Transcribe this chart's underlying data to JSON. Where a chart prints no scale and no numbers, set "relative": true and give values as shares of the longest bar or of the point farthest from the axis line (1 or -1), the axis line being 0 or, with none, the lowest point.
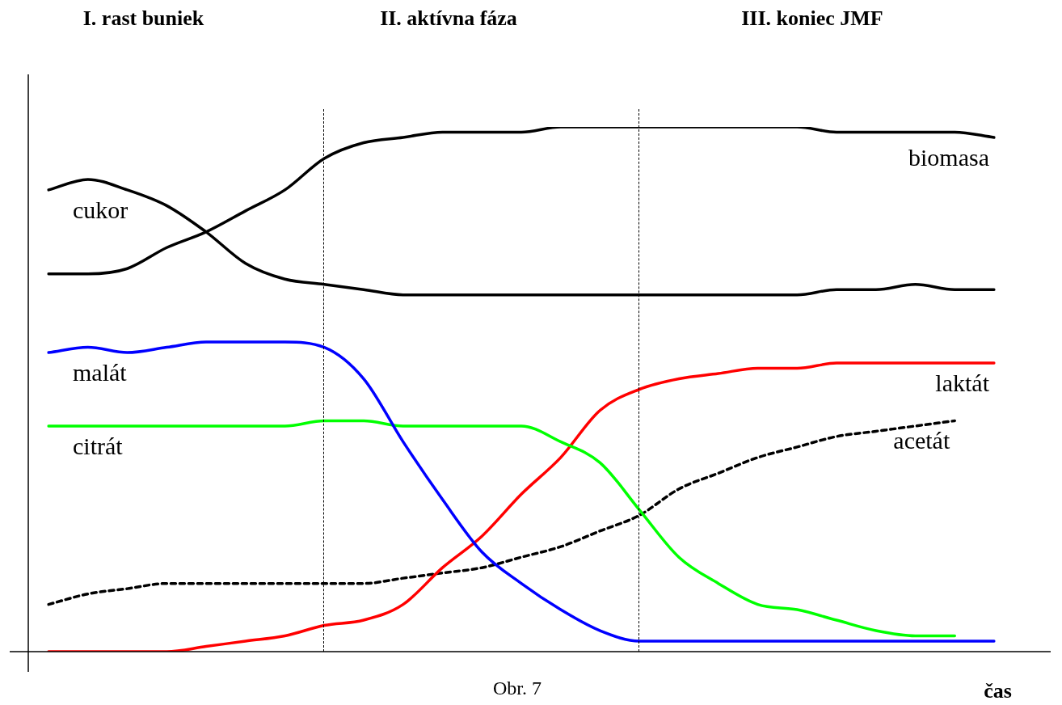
{
  "chart_data": {
    "type": "line",
    "relative": true,
    "xlabel": "čas",
    "line_style": "solid",
    "marker": "none",
    "legend": false,
    "tick_labels": false,
    "annotations": [
      "I. rast buniek",
      "II. aktívna fáza",
      "III. koniec JMF",
      "Obr. 7"
    ],
    "categories": [
      null,
      null,
      null,
      null,
      null,
      null,
      null,
      null,
      null,
      null,
      null,
      null,
      null,
      null,
      null,
      null,
      null,
      null,
      null,
      null,
      null,
      null,
      null,
      null,
      null
    ],
    "series": [
      {
        "name": "biomasa",
        "color": "#000000",
        "values": [
          0.72,
          0.72,
          0.73,
          0.77,
          0.8,
          0.84,
          0.88,
          0.94,
          0.97,
          0.98,
          0.99,
          0.99,
          0.99,
          1,
          1,
          1,
          1,
          1,
          1,
          1,
          0.99,
          0.99,
          0.99,
          0.99,
          0.98
        ]
      },
      {
        "name": "cukor",
        "color": "#000000",
        "values": [
          0.88,
          0.9,
          0.88,
          0.85,
          0.8,
          0.74,
          0.71,
          0.7,
          0.69,
          0.68,
          0.68,
          0.68,
          0.68,
          0.68,
          0.68,
          0.68,
          0.68,
          0.68,
          0.68,
          0.68,
          0.69,
          0.69,
          0.7,
          0.69,
          0.69
        ]
      },
      {
        "name": "malát",
        "color": "#0000ff",
        "values": [
          0.57,
          0.58,
          0.57,
          0.58,
          0.59,
          0.59,
          0.59,
          0.58,
          0.52,
          0.4,
          0.29,
          0.19,
          0.13,
          0.08,
          0.04,
          0.02,
          0.02,
          0.02,
          0.02,
          0.02,
          0.02,
          0.02,
          0.02,
          0.02,
          0.02
        ]
      },
      {
        "name": "citrát",
        "color": "#00ff00",
        "values": [
          0.43,
          0.43,
          0.43,
          0.43,
          0.43,
          0.43,
          0.43,
          0.44,
          0.44,
          0.43,
          0.43,
          0.43,
          0.43,
          0.4,
          0.36,
          0.27,
          0.18,
          0.13,
          0.09,
          0.08,
          0.06,
          0.04,
          0.03,
          0.03,
          null
        ]
      },
      {
        "name": "laktát",
        "color": "#ff0000",
        "values": [
          0,
          0,
          0,
          0,
          0.01,
          0.02,
          0.03,
          0.05,
          0.06,
          0.09,
          0.16,
          0.22,
          0.3,
          0.37,
          0.46,
          0.5,
          0.52,
          0.53,
          0.54,
          0.54,
          0.55,
          0.55,
          0.55,
          0.55,
          0.55
        ]
      },
      {
        "name": "acetát",
        "color": "#000000",
        "line_style": "dashed",
        "values": [
          0.09,
          0.11,
          0.12,
          0.13,
          0.13,
          0.13,
          0.13,
          0.13,
          0.13,
          0.14,
          0.15,
          0.16,
          0.18,
          0.2,
          0.23,
          0.26,
          0.31,
          0.34,
          0.37,
          0.39,
          0.41,
          0.42,
          0.43,
          0.44,
          null
        ]
      }
    ]
  }
}
